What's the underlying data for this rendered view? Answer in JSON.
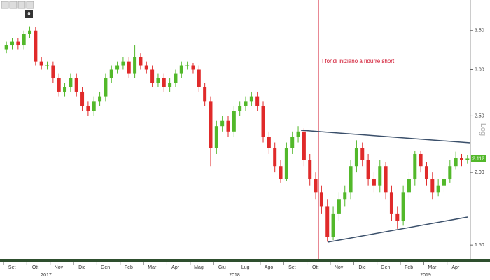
{
  "chart_data": {
    "type": "candlestick",
    "toolbar_label": "0",
    "annotation": "I fondi iniziano a ridurre short",
    "scale_label": "Log",
    "log_scale": true,
    "up_color": "#52b82a",
    "down_color": "#e02a2a",
    "ylim": [
      1.42,
      3.95
    ],
    "yticks": [
      {
        "value": 1.5,
        "label": "1.50"
      },
      {
        "value": 2,
        "label": "2.00"
      },
      {
        "value": 2.5,
        "label": "2.50"
      },
      {
        "value": 3,
        "label": "3.00"
      },
      {
        "value": 3.5,
        "label": "3.50"
      }
    ],
    "last_price": 2.112,
    "years": [
      "2017",
      "2018",
      "2019"
    ],
    "categories": [
      "Set",
      null,
      null,
      null,
      "Ott",
      null,
      null,
      null,
      "Nov",
      null,
      null,
      null,
      "Dic",
      null,
      null,
      null,
      "Gen",
      null,
      null,
      null,
      "Feb",
      null,
      null,
      null,
      "Mar",
      null,
      null,
      null,
      "Apr",
      null,
      null,
      null,
      "Mag",
      null,
      null,
      null,
      "Giu",
      null,
      null,
      null,
      "Lug",
      null,
      null,
      null,
      "Ago",
      null,
      null,
      null,
      "Set",
      null,
      null,
      null,
      "Ott",
      null,
      null,
      null,
      "Nov",
      null,
      null,
      null,
      "Dic",
      null,
      null,
      null,
      "Gen",
      null,
      null,
      null,
      "Feb",
      null,
      null,
      null,
      "Mar",
      null,
      null,
      null,
      "Apr",
      null,
      null,
      null
    ],
    "open": [
      3.25,
      3.3,
      3.35,
      3.3,
      3.45,
      3.5,
      3.1,
      3.05,
      3.05,
      2.9,
      2.75,
      2.8,
      2.9,
      2.75,
      2.6,
      2.55,
      2.65,
      2.7,
      2.9,
      3.0,
      3.05,
      3.1,
      2.95,
      3.15,
      3.05,
      3.0,
      2.85,
      2.9,
      2.8,
      2.85,
      2.95,
      3.05,
      3.05,
      3.0,
      2.8,
      2.65,
      2.2,
      2.4,
      2.45,
      2.35,
      2.55,
      2.6,
      2.65,
      2.7,
      2.6,
      2.3,
      2.2,
      2.05,
      1.95,
      2.2,
      2.3,
      2.35,
      2.1,
      1.95,
      1.85,
      1.75,
      1.55,
      1.7,
      1.8,
      1.85,
      2.05,
      2.2,
      2.1,
      1.95,
      1.9,
      2.05,
      1.85,
      1.7,
      1.65,
      1.85,
      1.95,
      2.15,
      2.05,
      1.95,
      1.85,
      1.9,
      1.95,
      2.05,
      2.12,
      2.1
    ],
    "high": [
      3.35,
      3.4,
      3.4,
      3.5,
      3.56,
      3.55,
      3.15,
      3.1,
      3.1,
      2.95,
      2.85,
      2.95,
      2.95,
      2.8,
      2.65,
      2.7,
      2.75,
      2.95,
      3.05,
      3.1,
      3.15,
      3.15,
      3.3,
      3.2,
      3.1,
      3.05,
      2.95,
      2.95,
      2.9,
      3.0,
      3.1,
      3.1,
      3.08,
      3.05,
      2.85,
      2.7,
      2.45,
      2.5,
      2.5,
      2.6,
      2.65,
      2.7,
      2.75,
      2.75,
      2.65,
      2.35,
      2.25,
      2.1,
      2.25,
      2.35,
      2.4,
      2.38,
      2.15,
      2.0,
      1.9,
      1.8,
      1.75,
      1.85,
      1.9,
      2.1,
      2.27,
      2.25,
      2.15,
      2.0,
      2.1,
      2.08,
      1.9,
      1.75,
      1.9,
      2.0,
      2.18,
      2.18,
      2.08,
      2.0,
      1.95,
      2.0,
      2.1,
      2.17,
      2.15,
      2.14
    ],
    "low": [
      3.2,
      3.25,
      3.25,
      3.25,
      3.4,
      3.05,
      3.0,
      3.0,
      2.85,
      2.7,
      2.7,
      2.75,
      2.7,
      2.55,
      2.5,
      2.5,
      2.6,
      2.65,
      2.85,
      2.95,
      3.0,
      2.9,
      2.9,
      3.0,
      2.95,
      2.8,
      2.8,
      2.75,
      2.75,
      2.8,
      2.9,
      3.0,
      2.95,
      2.75,
      2.6,
      2.05,
      2.15,
      2.35,
      2.3,
      2.3,
      2.5,
      2.55,
      2.6,
      2.55,
      2.25,
      2.15,
      2.0,
      1.92,
      1.93,
      2.15,
      2.25,
      2.05,
      1.9,
      1.8,
      1.7,
      1.52,
      1.53,
      1.65,
      1.75,
      1.8,
      2.0,
      2.05,
      1.9,
      1.85,
      1.85,
      1.8,
      1.65,
      1.6,
      1.62,
      1.8,
      1.9,
      2.0,
      1.9,
      1.8,
      1.82,
      1.85,
      1.92,
      2.02,
      2.05,
      2.07
    ],
    "close": [
      3.3,
      3.35,
      3.3,
      3.45,
      3.5,
      3.1,
      3.05,
      3.05,
      2.9,
      2.75,
      2.8,
      2.9,
      2.75,
      2.6,
      2.55,
      2.65,
      2.7,
      2.9,
      3.0,
      3.05,
      3.1,
      2.95,
      3.15,
      3.05,
      3.0,
      2.85,
      2.9,
      2.8,
      2.85,
      2.95,
      3.05,
      3.05,
      3.0,
      2.8,
      2.65,
      2.2,
      2.4,
      2.45,
      2.35,
      2.55,
      2.6,
      2.65,
      2.7,
      2.6,
      2.3,
      2.2,
      2.05,
      1.95,
      2.2,
      2.3,
      2.35,
      2.1,
      1.95,
      1.85,
      1.75,
      1.55,
      1.7,
      1.8,
      1.85,
      2.05,
      2.2,
      2.1,
      1.95,
      1.9,
      2.05,
      1.85,
      1.7,
      1.65,
      1.85,
      1.95,
      2.15,
      2.05,
      1.95,
      1.85,
      1.9,
      1.95,
      2.05,
      2.12,
      2.1,
      2.112
    ]
  }
}
